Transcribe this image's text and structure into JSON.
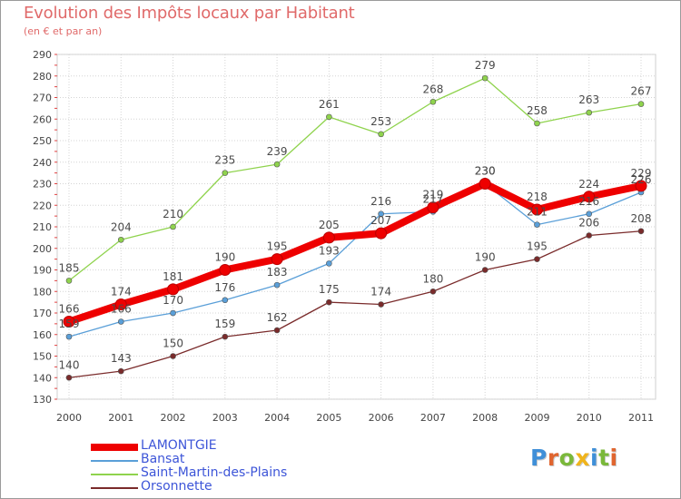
{
  "title": "Evolution des Impôts locaux par Habitant",
  "subtitle": "(en € et par an)",
  "logo": {
    "text": "Proxiti",
    "letter_colors": [
      "#3f8fd8",
      "#e0652f",
      "#7ab83a",
      "#f0b41c",
      "#3f8fd8",
      "#7ab83a",
      "#e0652f"
    ]
  },
  "chart_data": {
    "type": "line",
    "x": [
      "2000",
      "2001",
      "2002",
      "2003",
      "2004",
      "2005",
      "2006",
      "2007",
      "2008",
      "2009",
      "2010",
      "2011"
    ],
    "ylim": [
      130,
      290
    ],
    "yticks": [
      130,
      140,
      150,
      160,
      170,
      180,
      190,
      200,
      210,
      220,
      230,
      240,
      250,
      260,
      270,
      280,
      290
    ],
    "grid": true,
    "legend_position": "bottom-left",
    "series": [
      {
        "name": "Saint-Martin-des-Plains",
        "color": "#8fd34d",
        "style": "thin",
        "values": [
          185,
          204,
          210,
          235,
          239,
          261,
          253,
          268,
          279,
          258,
          263,
          267
        ]
      },
      {
        "name": "Orsonnette",
        "color": "#7a2b2b",
        "style": "thin",
        "values": [
          140,
          143,
          150,
          159,
          162,
          175,
          174,
          180,
          190,
          195,
          206,
          208
        ]
      },
      {
        "name": "Bansat",
        "color": "#5a9fd8",
        "style": "thin",
        "values": [
          159,
          166,
          170,
          176,
          183,
          193,
          216,
          217,
          230,
          211,
          216,
          226
        ]
      },
      {
        "name": "LAMONTGIE",
        "color": "#ee0000",
        "style": "thick",
        "values": [
          166,
          174,
          181,
          190,
          195,
          205,
          207,
          219,
          230,
          218,
          224,
          229
        ]
      }
    ],
    "legend_order": [
      "LAMONTGIE",
      "Bansat",
      "Saint-Martin-des-Plains",
      "Orsonnette"
    ]
  }
}
